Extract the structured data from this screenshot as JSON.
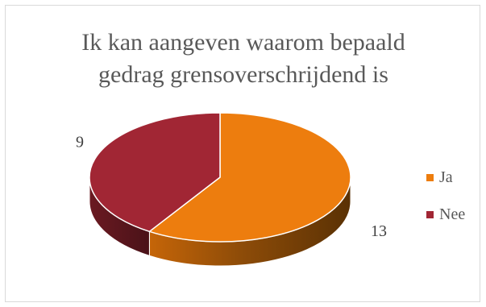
{
  "chart_data": {
    "type": "pie",
    "style": "3d",
    "title": "Ik kan aangeven waarom bepaald gedrag grensoverschrijdend is",
    "title_lines": [
      "Ik kan aangeven waarom bepaald",
      "gedrag grensoverschrijdend is"
    ],
    "categories": [
      "Ja",
      "Nee"
    ],
    "values": [
      13,
      9
    ],
    "data_labels": [
      "13",
      "9"
    ],
    "colors": [
      "#ED7D0E",
      "#A12634"
    ],
    "legend_position": "right"
  }
}
